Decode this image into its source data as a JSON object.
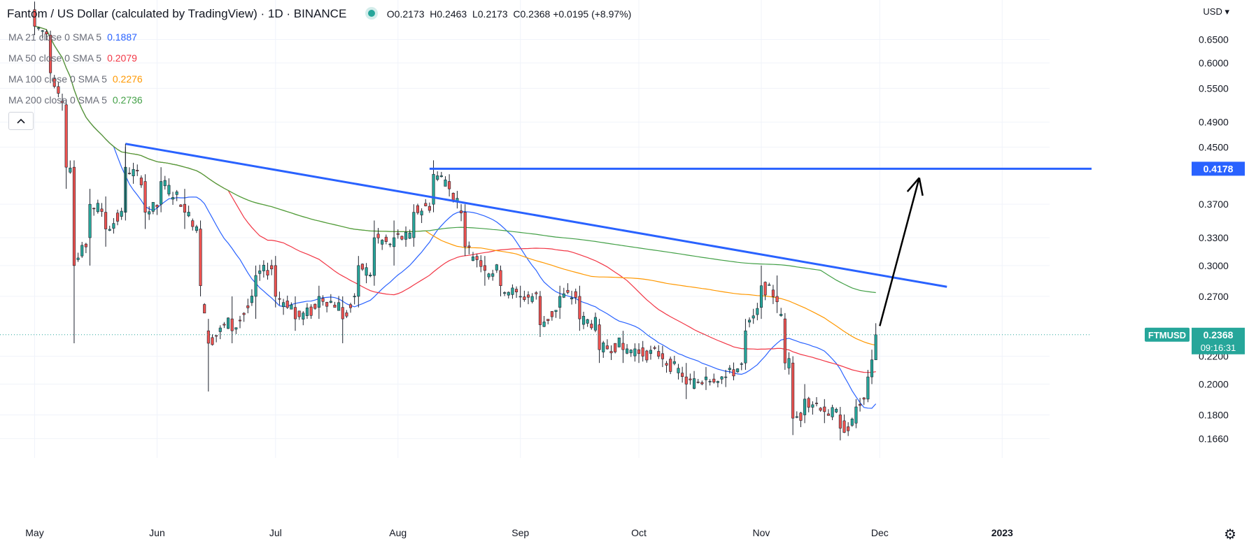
{
  "header": {
    "symbol_title": "Fantom / US Dollar (calculated by TradingView) · 1D · BINANCE",
    "ohlc": {
      "o": "O0.2173",
      "h": "H0.2463",
      "l": "L0.2173",
      "c": "C0.2368",
      "chg": "+0.0195 (+8.97%)"
    }
  },
  "moving_averages": [
    {
      "label": "MA 21 close 0 SMA 5",
      "value": "0.1887",
      "color": "#2962ff"
    },
    {
      "label": "MA 50 close 0 SMA 5",
      "value": "0.2079",
      "color": "#f23645"
    },
    {
      "label": "MA 100 close 0 SMA 5",
      "value": "0.2276",
      "color": "#ff9800"
    },
    {
      "label": "MA 200 close 0 SMA 5",
      "value": "0.2736",
      "color": "#43a047"
    }
  ],
  "currency_label": "USD",
  "colors": {
    "up": "#26a69a",
    "down": "#ef5350",
    "trendline": "#2962ff",
    "arrow": "#000000",
    "price_label": "#26a69a"
  },
  "chart_data": {
    "type": "candlestick",
    "scale": "log",
    "y_ticks": [
      0.65,
      0.6,
      0.55,
      0.49,
      0.45,
      0.37,
      0.33,
      0.3,
      0.27,
      0.22,
      0.2,
      0.18,
      0.166
    ],
    "y_tick_labels": [
      "0.6500",
      "0.6000",
      "0.5500",
      "0.4900",
      "0.4500",
      "0.3700",
      "0.3300",
      "0.3000",
      "0.2700",
      "0.2200",
      "0.2000",
      "0.1800",
      "0.1660"
    ],
    "x_ticks": [
      {
        "date": "2022-05-01",
        "label": "May"
      },
      {
        "date": "2022-06-01",
        "label": "Jun"
      },
      {
        "date": "2022-07-01",
        "label": "Jul"
      },
      {
        "date": "2022-08-01",
        "label": "Aug"
      },
      {
        "date": "2022-09-01",
        "label": "Sep"
      },
      {
        "date": "2022-10-01",
        "label": "Oct"
      },
      {
        "date": "2022-11-01",
        "label": "Nov"
      },
      {
        "date": "2022-12-01",
        "label": "Dec"
      },
      {
        "date": "2023-01-01",
        "label": "2023"
      }
    ],
    "x_range": [
      "2022-04-24",
      "2023-01-13"
    ],
    "y_range": [
      0.158,
      0.73
    ],
    "ohlc_keypoints": [
      [
        "2022-05-01",
        0.72,
        0.74,
        0.66,
        0.68
      ],
      [
        "2022-05-05",
        0.66,
        0.67,
        0.56,
        0.58
      ],
      [
        "2022-05-09",
        0.52,
        0.53,
        0.39,
        0.42
      ],
      [
        "2022-05-11",
        0.42,
        0.43,
        0.23,
        0.3
      ],
      [
        "2022-05-15",
        0.33,
        0.39,
        0.3,
        0.37
      ],
      [
        "2022-05-19",
        0.36,
        0.38,
        0.32,
        0.34
      ],
      [
        "2022-05-24",
        0.36,
        0.45,
        0.35,
        0.42
      ],
      [
        "2022-05-29",
        0.4,
        0.41,
        0.34,
        0.36
      ],
      [
        "2022-06-02",
        0.37,
        0.42,
        0.36,
        0.4
      ],
      [
        "2022-06-08",
        0.37,
        0.39,
        0.34,
        0.36
      ],
      [
        "2022-06-12",
        0.34,
        0.35,
        0.27,
        0.28
      ],
      [
        "2022-06-14",
        0.24,
        0.25,
        0.195,
        0.23
      ],
      [
        "2022-06-20",
        0.25,
        0.27,
        0.23,
        0.24
      ],
      [
        "2022-06-26",
        0.27,
        0.3,
        0.25,
        0.29
      ],
      [
        "2022-07-01",
        0.3,
        0.31,
        0.26,
        0.27
      ],
      [
        "2022-07-06",
        0.26,
        0.27,
        0.24,
        0.25
      ],
      [
        "2022-07-12",
        0.26,
        0.28,
        0.25,
        0.27
      ],
      [
        "2022-07-18",
        0.26,
        0.27,
        0.23,
        0.25
      ],
      [
        "2022-07-22",
        0.27,
        0.31,
        0.26,
        0.3
      ],
      [
        "2022-07-26",
        0.29,
        0.35,
        0.28,
        0.33
      ],
      [
        "2022-07-31",
        0.32,
        0.35,
        0.3,
        0.33
      ],
      [
        "2022-08-05",
        0.33,
        0.37,
        0.32,
        0.36
      ],
      [
        "2022-08-10",
        0.37,
        0.43,
        0.36,
        0.41
      ],
      [
        "2022-08-14",
        0.4,
        0.41,
        0.38,
        0.39
      ],
      [
        "2022-08-18",
        0.36,
        0.37,
        0.31,
        0.32
      ],
      [
        "2022-08-23",
        0.3,
        0.31,
        0.28,
        0.295
      ],
      [
        "2022-08-27",
        0.295,
        0.3,
        0.27,
        0.28
      ],
      [
        "2022-09-01",
        0.27,
        0.28,
        0.26,
        0.27
      ],
      [
        "2022-09-06",
        0.27,
        0.275,
        0.235,
        0.245
      ],
      [
        "2022-09-11",
        0.26,
        0.28,
        0.25,
        0.27
      ],
      [
        "2022-09-16",
        0.27,
        0.28,
        0.24,
        0.25
      ],
      [
        "2022-09-21",
        0.245,
        0.25,
        0.215,
        0.225
      ],
      [
        "2022-09-27",
        0.23,
        0.24,
        0.215,
        0.225
      ],
      [
        "2022-10-01",
        0.225,
        0.23,
        0.215,
        0.222
      ],
      [
        "2022-10-07",
        0.222,
        0.228,
        0.212,
        0.218
      ],
      [
        "2022-10-13",
        0.205,
        0.215,
        0.19,
        0.2
      ],
      [
        "2022-10-18",
        0.203,
        0.212,
        0.196,
        0.205
      ],
      [
        "2022-10-23",
        0.205,
        0.21,
        0.198,
        0.205
      ],
      [
        "2022-10-28",
        0.215,
        0.25,
        0.21,
        0.24
      ],
      [
        "2022-11-01",
        0.26,
        0.3,
        0.25,
        0.28
      ],
      [
        "2022-11-05",
        0.27,
        0.29,
        0.255,
        0.265
      ],
      [
        "2022-11-07",
        0.25,
        0.255,
        0.21,
        0.215
      ],
      [
        "2022-11-09",
        0.215,
        0.22,
        0.168,
        0.178
      ],
      [
        "2022-11-12",
        0.18,
        0.2,
        0.175,
        0.19
      ],
      [
        "2022-11-17",
        0.185,
        0.19,
        0.175,
        0.182
      ],
      [
        "2022-11-21",
        0.18,
        0.185,
        0.165,
        0.172
      ],
      [
        "2022-11-25",
        0.175,
        0.19,
        0.172,
        0.185
      ],
      [
        "2022-11-28",
        0.19,
        0.21,
        0.188,
        0.205
      ],
      [
        "2022-11-29",
        0.205,
        0.225,
        0.2,
        0.2173
      ],
      [
        "2022-11-30",
        0.2173,
        0.2463,
        0.2173,
        0.2368
      ]
    ],
    "annotations": {
      "horizontal_line": {
        "value": 0.4178,
        "label": "0.4178",
        "from": "2022-08-09"
      },
      "trendline": {
        "from": [
          "2022-05-24",
          0.455
        ],
        "to": [
          "2022-12-18",
          0.279
        ]
      },
      "arrow": {
        "from": [
          "2022-12-01",
          0.244
        ],
        "to": [
          "2022-12-11",
          0.405
        ]
      },
      "last_price": {
        "symbol": "FTMUSD",
        "value": "0.2368",
        "countdown": "09:16:31"
      }
    }
  }
}
